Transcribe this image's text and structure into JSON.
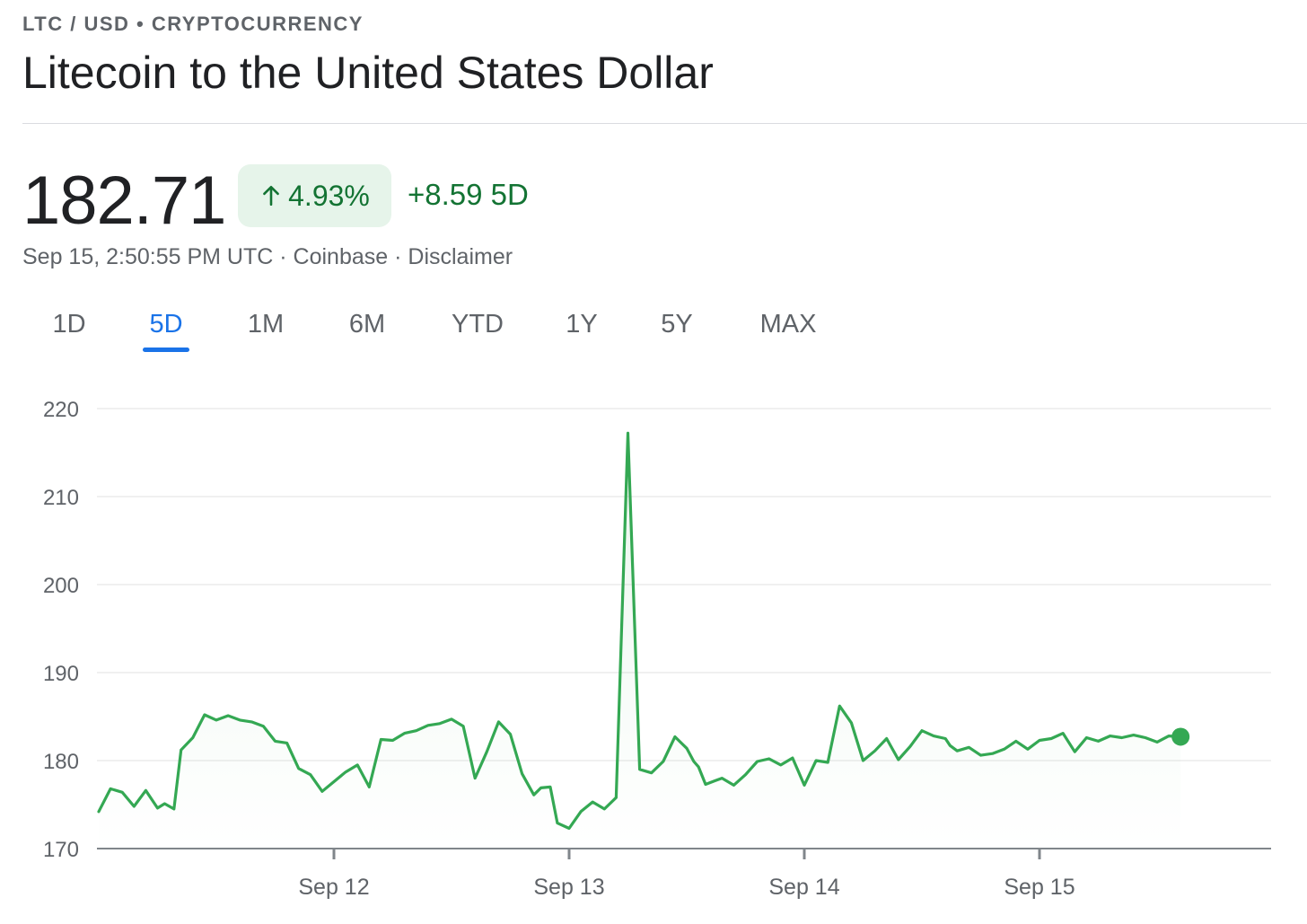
{
  "header": {
    "eyebrow": "LTC / USD • CRYPTOCURRENCY",
    "title": "Litecoin to the United States Dollar"
  },
  "quote": {
    "price": "182.71",
    "percent_change": "4.93%",
    "abs_change": "+8.59 5D",
    "timestamp": "Sep 15, 2:50:55 PM UTC",
    "source": "Coinbase",
    "disclaimer": "Disclaimer",
    "separator": " · "
  },
  "tabs": [
    {
      "label": "1D",
      "active": false
    },
    {
      "label": "5D",
      "active": true
    },
    {
      "label": "1M",
      "active": false
    },
    {
      "label": "6M",
      "active": false
    },
    {
      "label": "YTD",
      "active": false
    },
    {
      "label": "1Y",
      "active": false
    },
    {
      "label": "5Y",
      "active": false
    },
    {
      "label": "MAX",
      "active": false
    }
  ],
  "colors": {
    "line": "#34a853",
    "positive": "#137333",
    "positive_bg": "#e6f4ea",
    "accent": "#1a73e8",
    "grid": "#ebebeb",
    "axis": "#5f6368"
  },
  "icons": {
    "badge": "arrow-up-icon"
  },
  "chart_data": {
    "type": "line",
    "title": "",
    "xlabel": "",
    "ylabel": "",
    "ylim": [
      170,
      220
    ],
    "yticks": [
      "170",
      "180",
      "190",
      "200",
      "210",
      "220"
    ],
    "xlim": [
      11.0,
      16.0
    ],
    "xticks": [
      {
        "label": "Sep 12",
        "value": 12
      },
      {
        "label": "Sep 13",
        "value": 13
      },
      {
        "label": "Sep 14",
        "value": 14
      },
      {
        "label": "Sep 15",
        "value": 15
      }
    ],
    "grid": true,
    "series": [
      {
        "x": [
          11.0,
          11.05,
          11.1,
          11.15,
          11.2,
          11.25,
          11.28,
          11.32,
          11.35,
          11.4,
          11.45,
          11.5,
          11.55,
          11.6,
          11.65,
          11.7,
          11.75,
          11.8,
          11.85,
          11.9,
          11.95,
          12.0,
          12.05,
          12.1,
          12.15,
          12.2,
          12.25,
          12.3,
          12.35,
          12.4,
          12.45,
          12.5,
          12.55,
          12.6,
          12.65,
          12.7,
          12.75,
          12.8,
          12.85,
          12.88,
          12.92,
          12.95,
          13.0,
          13.05,
          13.1,
          13.15,
          13.2,
          13.25,
          13.3,
          13.35,
          13.4,
          13.45,
          13.5,
          13.53,
          13.55,
          13.58,
          13.62,
          13.65,
          13.7,
          13.75,
          13.8,
          13.85,
          13.9,
          13.95,
          14.0,
          14.05,
          14.1,
          14.15,
          14.2,
          14.25,
          14.3,
          14.35,
          14.4,
          14.45,
          14.5,
          14.55,
          14.6,
          14.62,
          14.65,
          14.7,
          14.75,
          14.8,
          14.85,
          14.9,
          14.95,
          15.0,
          15.05,
          15.1,
          15.15,
          15.2,
          15.25,
          15.3,
          15.35,
          15.4,
          15.45,
          15.5,
          15.55,
          15.6,
          15.6
        ],
        "values": [
          174.2,
          176.8,
          176.4,
          174.8,
          176.6,
          174.6,
          175.1,
          174.5,
          181.2,
          182.6,
          185.2,
          184.6,
          185.1,
          184.6,
          184.4,
          183.9,
          182.2,
          182.0,
          179.1,
          178.4,
          176.5,
          177.6,
          178.7,
          179.5,
          177.0,
          182.4,
          182.3,
          183.1,
          183.4,
          184.0,
          184.2,
          184.7,
          183.9,
          178.0,
          181.0,
          184.4,
          183.0,
          178.5,
          176.1,
          176.9,
          177.0,
          172.9,
          172.3,
          174.2,
          175.3,
          174.5,
          175.8,
          217.2,
          179.0,
          178.6,
          179.9,
          182.7,
          181.4,
          179.9,
          179.3,
          177.3,
          177.7,
          178.0,
          177.2,
          178.4,
          179.9,
          180.2,
          179.5,
          180.3,
          177.2,
          180.0,
          179.8,
          186.2,
          184.3,
          180.0,
          181.1,
          182.5,
          180.1,
          181.6,
          183.4,
          182.8,
          182.5,
          181.7,
          181.1,
          181.5,
          180.6,
          180.8,
          181.3,
          182.2,
          181.3,
          182.3,
          182.5,
          183.1,
          181.0,
          182.6,
          182.2,
          182.8,
          182.6,
          182.9,
          182.6,
          182.1,
          182.8,
          182.7,
          182.71
        ],
        "last_value": 182.71
      }
    ]
  }
}
